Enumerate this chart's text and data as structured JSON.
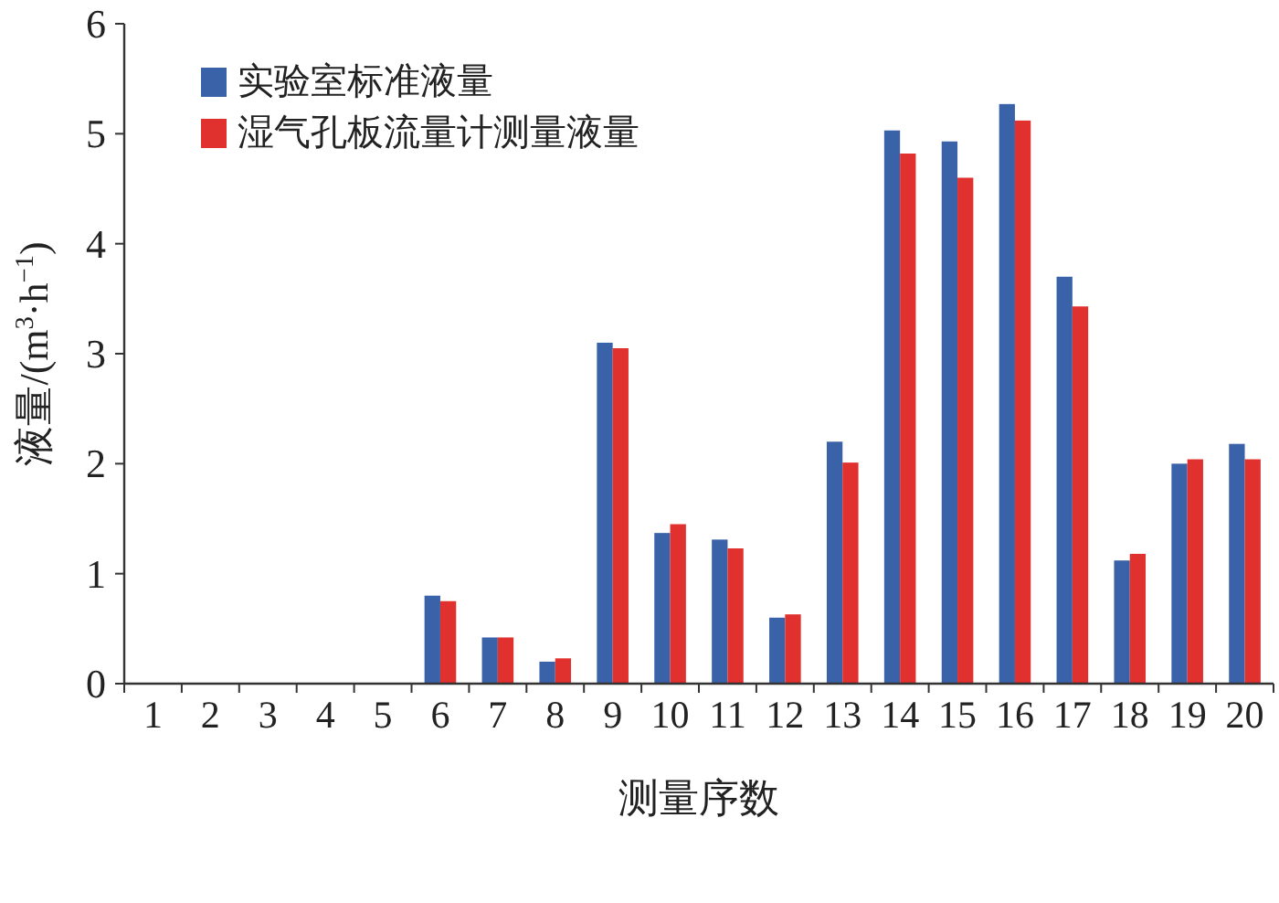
{
  "chart_data": {
    "type": "bar",
    "xlabel": "测量序数",
    "ylabel": "液量/(m$^{3}$·h$^{−1}$)",
    "categories": [
      "1",
      "2",
      "3",
      "4",
      "5",
      "6",
      "7",
      "8",
      "9",
      "10",
      "11",
      "12",
      "13",
      "14",
      "15",
      "16",
      "17",
      "18",
      "19",
      "20"
    ],
    "series": [
      {
        "name": "实验室标准液量",
        "color": "#3a62a8",
        "values": [
          0,
          0,
          0,
          0,
          0,
          0.8,
          0.42,
          0.2,
          3.1,
          1.37,
          1.31,
          0.6,
          2.2,
          5.03,
          4.93,
          5.27,
          3.7,
          1.12,
          2.0,
          2.18
        ]
      },
      {
        "name": "湿气孔板流量计测量液量",
        "color": "#e0312f",
        "values": [
          0,
          0,
          0,
          0,
          0,
          0.75,
          0.42,
          0.23,
          3.05,
          1.45,
          1.23,
          0.63,
          2.01,
          4.82,
          4.6,
          5.12,
          3.43,
          1.18,
          2.04,
          2.04
        ]
      }
    ],
    "ylim": [
      0,
      6
    ],
    "yticks": [
      0,
      1,
      2,
      3,
      4,
      5,
      6
    ],
    "grid": false,
    "legend": "top left"
  }
}
